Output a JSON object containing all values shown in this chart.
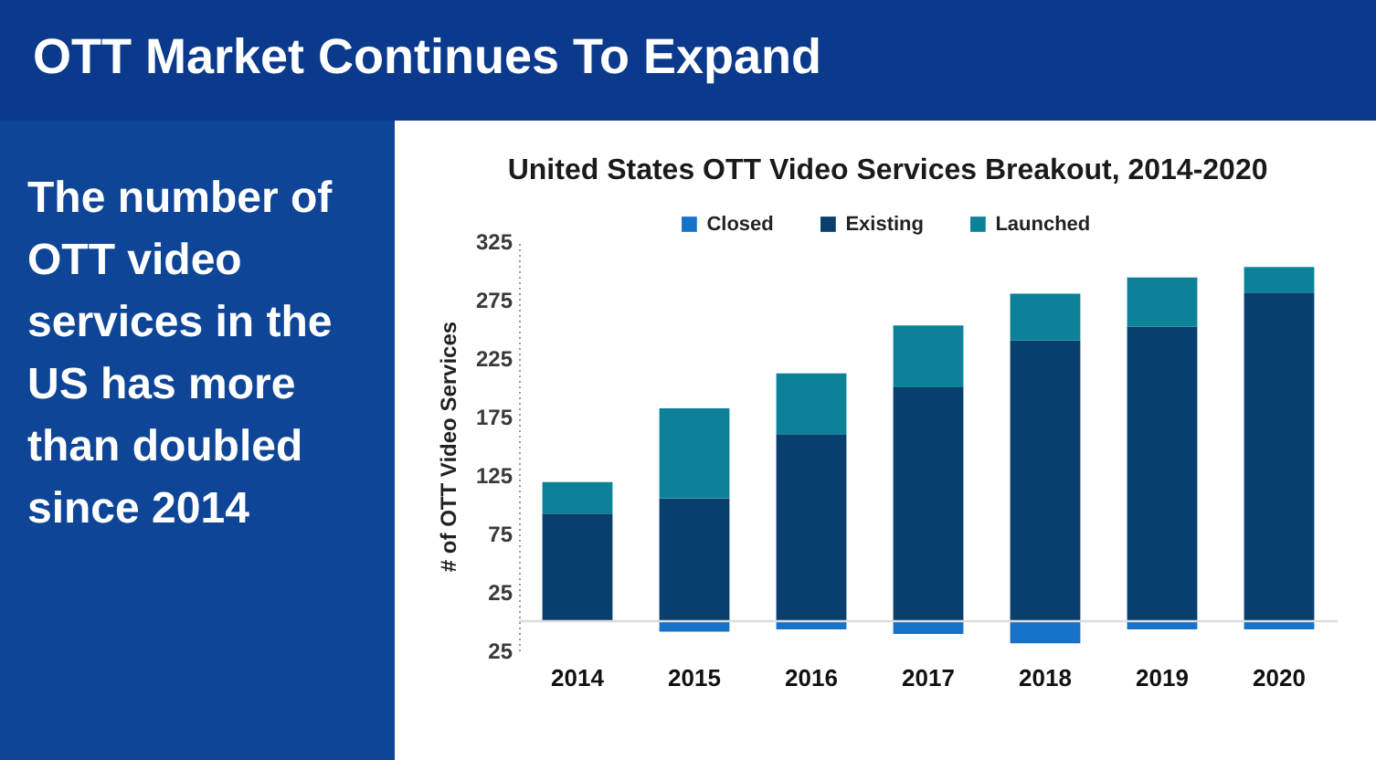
{
  "chart_data": {
    "type": "bar",
    "title": "OTT Market Continues To Expand",
    "subtitle": "United States OTT Video Services Breakout, 2014-2020",
    "ylabel": "# of OTT Video Services",
    "annotations": [
      "The number of OTT video services in the US has more than doubled since 2014"
    ],
    "categories": [
      "2014",
      "2015",
      "2016",
      "2017",
      "2018",
      "2019",
      "2020"
    ],
    "series": [
      {
        "name": "Closed",
        "color": "#1673c9",
        "values": [
          null,
          -9,
          -7,
          -11,
          -19,
          -7,
          -7
        ]
      },
      {
        "name": "Existing",
        "color": "#083f6e",
        "values": [
          92,
          105,
          160,
          200,
          240,
          252,
          281
        ]
      },
      {
        "name": "Launched",
        "color": "#0c8299",
        "values": [
          27,
          77,
          52,
          53,
          40,
          42,
          22
        ]
      }
    ],
    "stacked": true,
    "ylim": [
      -25,
      325
    ],
    "yticks": [
      325,
      275,
      225,
      175,
      125,
      75,
      25,
      {
        "value": -25,
        "label": "25"
      }
    ],
    "grid": false,
    "legend": "top",
    "ref_lines": [
      {
        "axis": "y",
        "value": 0,
        "color": "#dcdcdc"
      }
    ]
  }
}
